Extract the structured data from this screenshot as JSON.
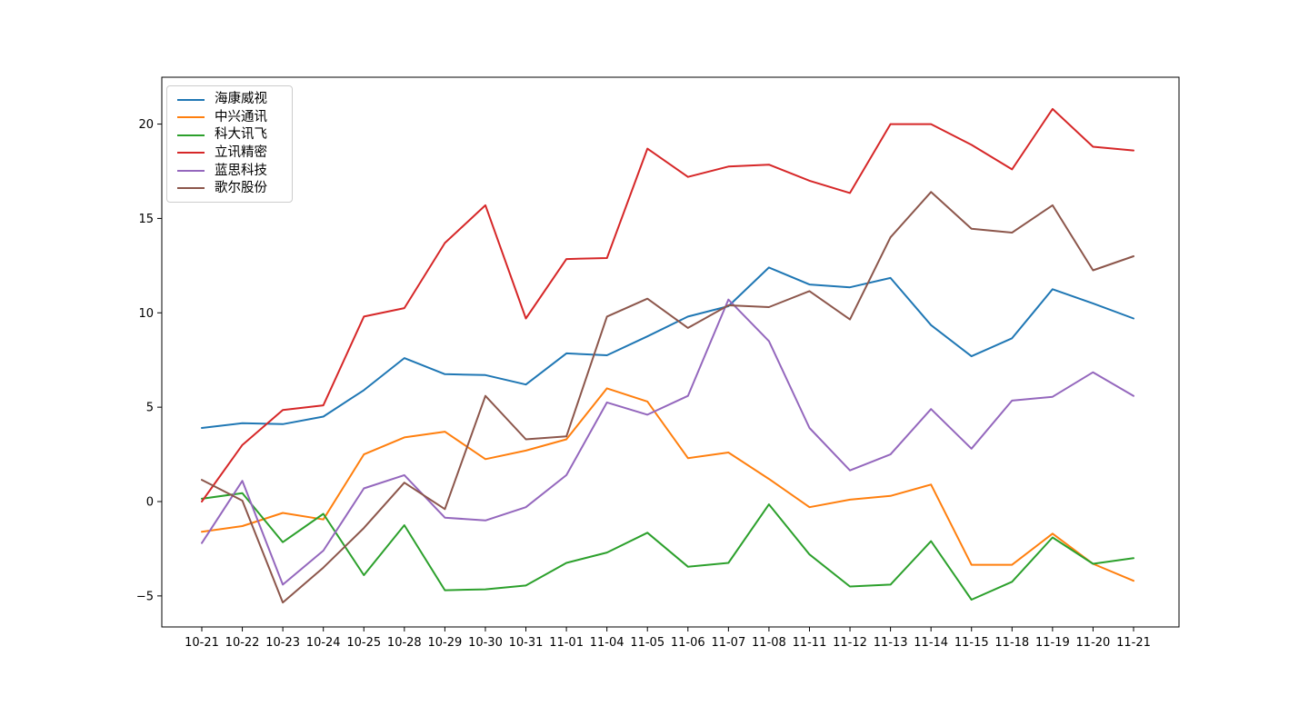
{
  "chart_data": {
    "type": "line",
    "title": "",
    "xlabel": "",
    "ylabel": "",
    "grid": false,
    "legend_position": "upper left",
    "ylim": [
      -6.6,
      22.5
    ],
    "y_ticks": [
      -5,
      0,
      5,
      10,
      15,
      20
    ],
    "x_tick_labels": [
      "10-21",
      "10-22",
      "10-23",
      "10-24",
      "10-25",
      "10-28",
      "10-29",
      "10-30",
      "10-31",
      "11-01",
      "11-04",
      "11-05",
      "11-06",
      "11-07",
      "11-08",
      "11-11",
      "11-12",
      "11-13",
      "11-14",
      "11-15",
      "11-18",
      "11-19",
      "11-20",
      "11-21"
    ],
    "series": [
      {
        "name": "海康威视",
        "color": "#1f77b4",
        "values": [
          3.9,
          4.15,
          4.1,
          4.5,
          5.9,
          7.6,
          6.75,
          6.7,
          6.2,
          7.85,
          7.75,
          8.75,
          9.8,
          10.35,
          12.4,
          11.5,
          11.35,
          11.85,
          9.35,
          7.7,
          8.65,
          11.25,
          10.5,
          9.7
        ]
      },
      {
        "name": "中兴通讯",
        "color": "#ff7f0e",
        "values": [
          -1.6,
          -1.3,
          -0.6,
          -0.95,
          2.5,
          3.4,
          3.7,
          2.25,
          2.7,
          3.3,
          6.0,
          5.3,
          2.3,
          2.6,
          1.2,
          -0.3,
          0.1,
          0.3,
          0.9,
          -3.35,
          -3.35,
          -1.7,
          -3.3,
          -4.2
        ]
      },
      {
        "name": "科大讯飞",
        "color": "#2ca02c",
        "values": [
          0.15,
          0.45,
          -2.15,
          -0.65,
          -3.9,
          -1.25,
          -4.7,
          -4.65,
          -4.45,
          -3.25,
          -2.7,
          -1.65,
          -3.45,
          -3.25,
          -0.15,
          -2.8,
          -4.5,
          -4.4,
          -2.1,
          -5.2,
          -4.25,
          -1.9,
          -3.3,
          -3.0
        ]
      },
      {
        "name": "立讯精密",
        "color": "#d62728",
        "values": [
          0.0,
          3.0,
          4.85,
          5.1,
          9.8,
          10.25,
          13.7,
          15.7,
          9.7,
          12.85,
          12.9,
          18.7,
          17.2,
          17.75,
          17.85,
          17.0,
          16.35,
          20.0,
          20.0,
          18.9,
          17.6,
          20.8,
          18.8,
          18.6
        ]
      },
      {
        "name": "蓝思科技",
        "color": "#9467bd",
        "values": [
          -2.2,
          1.1,
          -4.4,
          -2.6,
          0.7,
          1.4,
          -0.85,
          -1.0,
          -0.3,
          1.4,
          5.25,
          4.6,
          5.6,
          10.7,
          8.5,
          3.9,
          1.65,
          2.5,
          4.9,
          2.8,
          5.35,
          5.55,
          6.85,
          5.6
        ]
      },
      {
        "name": "歌尔股份",
        "color": "#8c564b",
        "values": [
          1.15,
          0.05,
          -5.35,
          -3.5,
          -1.4,
          1.0,
          -0.4,
          5.6,
          3.3,
          3.45,
          9.8,
          10.75,
          9.2,
          10.4,
          10.3,
          11.15,
          9.65,
          14.0,
          16.4,
          14.45,
          14.25,
          15.7,
          12.25,
          13.0
        ]
      }
    ]
  }
}
